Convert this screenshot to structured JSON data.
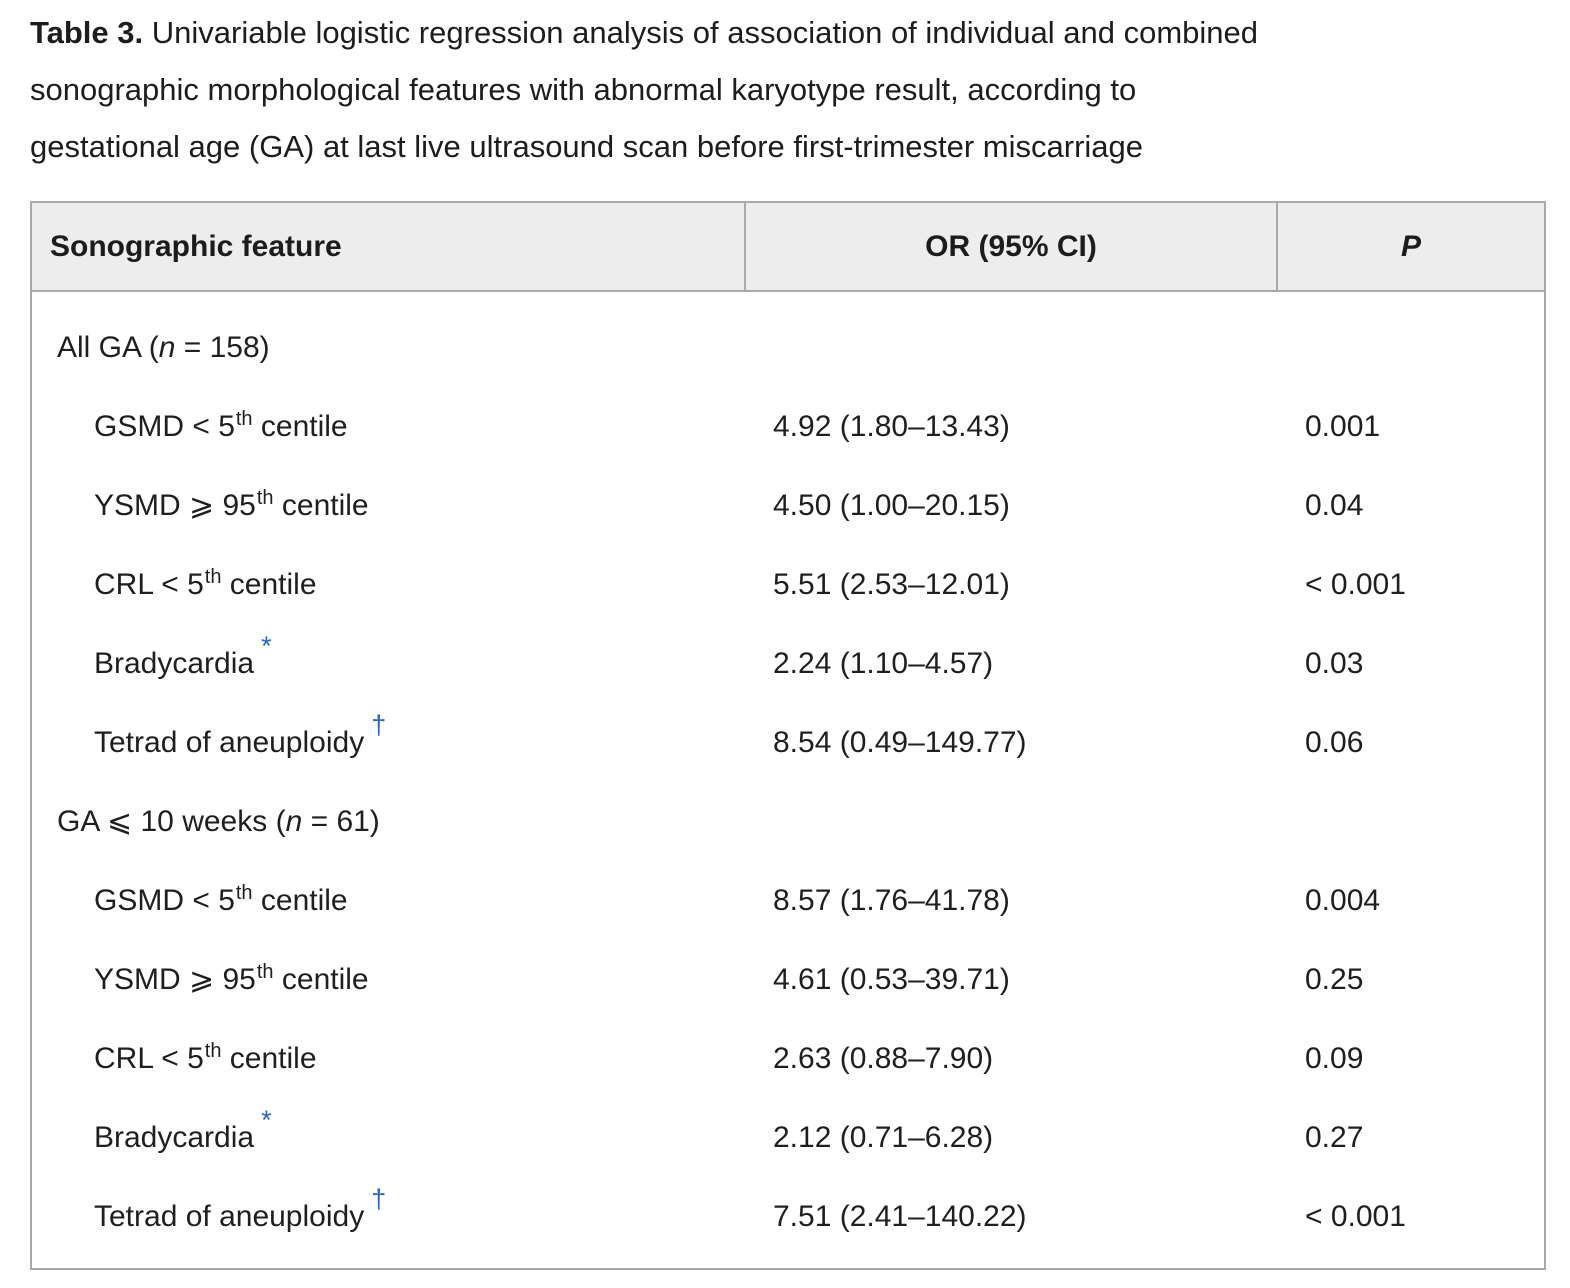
{
  "title": {
    "label": "Table 3.",
    "line1_rest": " Univariable logistic regression analysis of association of individual and combined",
    "line2": "sonographic morphological features with abnormal karyotype result, according to",
    "line3": "gestational age (GA) at last live ultrasound scan before first-trimester miscarriage"
  },
  "colors": {
    "marker_blue": "#2d68b2",
    "border_gray": "#a9a9a9",
    "header_fill": "#ededed",
    "text": "#1f1f1f"
  },
  "table": {
    "columns": {
      "feature": "Sonographic feature",
      "or": "OR (95% CI)",
      "p": "P"
    },
    "rows": [
      {
        "type": "section",
        "pre": "All GA (",
        "n": "n",
        "post": " = 158)"
      },
      {
        "type": "feature",
        "pre": "GSMD < 5",
        "sup": "th",
        "tail": " centile",
        "marker": "",
        "or": "4.92 (1.80–13.43)",
        "p": "0.001"
      },
      {
        "type": "feature",
        "pre": "YSMD ⩾ 95",
        "sup": "th",
        "tail": " centile",
        "marker": "",
        "or": "4.50 (1.00–20.15)",
        "p": "0.04"
      },
      {
        "type": "feature",
        "pre": "CRL < 5",
        "sup": "th",
        "tail": " centile",
        "marker": "",
        "or": "5.51 (2.53–12.01)",
        "p": "< 0.001"
      },
      {
        "type": "feature",
        "pre": "Bradycardia",
        "sup": "",
        "tail": "",
        "marker": "*",
        "or": "2.24 (1.10–4.57)",
        "p": "0.03"
      },
      {
        "type": "feature",
        "pre": "Tetrad of aneuploidy",
        "sup": "",
        "tail": "",
        "marker": "†",
        "or": "8.54 (0.49–149.77)",
        "p": "0.06"
      },
      {
        "type": "section",
        "pre": "GA ⩽ 10 weeks (",
        "n": "n",
        "post": " = 61)"
      },
      {
        "type": "feature",
        "pre": "GSMD < 5",
        "sup": "th",
        "tail": " centile",
        "marker": "",
        "or": "8.57 (1.76–41.78)",
        "p": "0.004"
      },
      {
        "type": "feature",
        "pre": "YSMD ⩾ 95",
        "sup": "th",
        "tail": " centile",
        "marker": "",
        "or": "4.61 (0.53–39.71)",
        "p": "0.25"
      },
      {
        "type": "feature",
        "pre": "CRL < 5",
        "sup": "th",
        "tail": " centile",
        "marker": "",
        "or": "2.63 (0.88–7.90)",
        "p": "0.09"
      },
      {
        "type": "feature",
        "pre": "Bradycardia",
        "sup": "",
        "tail": "",
        "marker": "*",
        "or": "2.12 (0.71–6.28)",
        "p": "0.27"
      },
      {
        "type": "feature",
        "pre": "Tetrad of aneuploidy",
        "sup": "",
        "tail": "",
        "marker": "†",
        "or": "7.51 (2.41–140.22)",
        "p": "< 0.001"
      }
    ]
  }
}
